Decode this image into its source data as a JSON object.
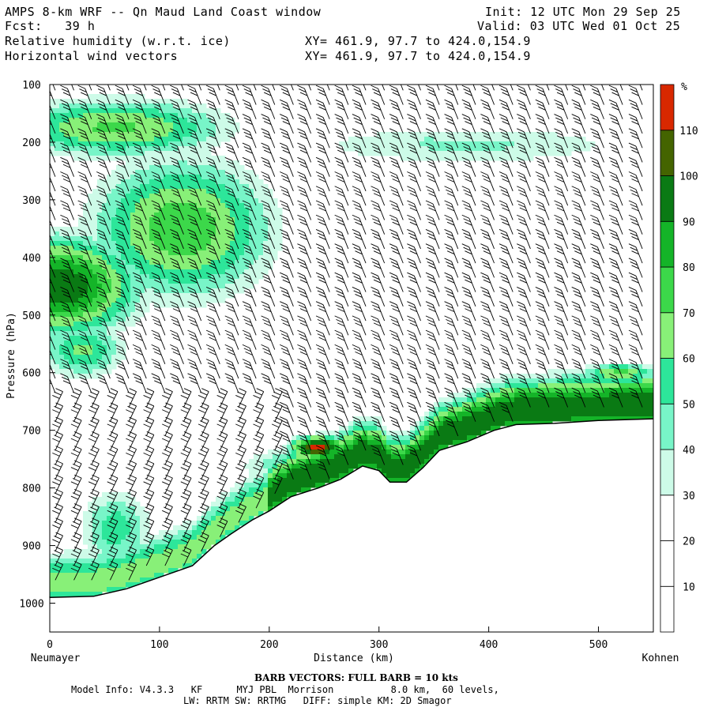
{
  "header": {
    "line1_left": "AMPS 8-km WRF -- Qn Maud Land Coast window",
    "line1_right": "Init: 12 UTC Mon 29 Sep 25",
    "line2_left": "Fcst:   39 h",
    "line2_right": "Valid: 03 UTC Wed 01 Oct 25",
    "line3_left": "Relative humidity (w.r.t. ice)",
    "line3_right": "XY= 461.9, 97.7 to 424.0,154.9",
    "line4_left": "Horizontal wind vectors",
    "line4_right": "XY= 461.9, 97.7 to 424.0,154.9"
  },
  "chart_data": {
    "type": "contour",
    "title": "Relative humidity (w.r.t. ice)",
    "xlabel": "Distance (km)",
    "ylabel": "Pressure (hPa)",
    "xlim": [
      0,
      550
    ],
    "ylim": [
      1050,
      100
    ],
    "x_ticks": [
      0,
      100,
      200,
      300,
      400,
      500
    ],
    "y_ticks": [
      100,
      200,
      300,
      400,
      500,
      600,
      700,
      800,
      900,
      1000
    ],
    "x_start_label": "Neumayer",
    "x_end_label": "Kohnen",
    "colorbar": {
      "unit": "%",
      "levels": [
        10,
        20,
        30,
        40,
        50,
        60,
        70,
        80,
        90,
        100,
        110
      ],
      "colors": [
        "#ffffff",
        "#ffffff",
        "#ffffff",
        "#cdfbe8",
        "#78f5c8",
        "#2de69a",
        "#88f078",
        "#3cd84a",
        "#14b428",
        "#0a7a14",
        "#446400",
        "#d82800"
      ]
    },
    "terrain": [
      {
        "x": 0,
        "p": 990
      },
      {
        "x": 40,
        "p": 988
      },
      {
        "x": 70,
        "p": 975
      },
      {
        "x": 100,
        "p": 955
      },
      {
        "x": 130,
        "p": 935
      },
      {
        "x": 150,
        "p": 900
      },
      {
        "x": 165,
        "p": 880
      },
      {
        "x": 185,
        "p": 855
      },
      {
        "x": 200,
        "p": 840
      },
      {
        "x": 220,
        "p": 815
      },
      {
        "x": 245,
        "p": 800
      },
      {
        "x": 265,
        "p": 785
      },
      {
        "x": 285,
        "p": 762
      },
      {
        "x": 300,
        "p": 770
      },
      {
        "x": 310,
        "p": 790
      },
      {
        "x": 325,
        "p": 790
      },
      {
        "x": 340,
        "p": 765
      },
      {
        "x": 355,
        "p": 735
      },
      {
        "x": 380,
        "p": 720
      },
      {
        "x": 405,
        "p": 700
      },
      {
        "x": 425,
        "p": 690
      },
      {
        "x": 460,
        "p": 688
      },
      {
        "x": 500,
        "p": 683
      },
      {
        "x": 550,
        "p": 680
      }
    ],
    "barb_columns_km": [
      5,
      22,
      38,
      55,
      72,
      88,
      105,
      122,
      138,
      155,
      172,
      188,
      205,
      222,
      238,
      255,
      272,
      288,
      305,
      322,
      338,
      355,
      372,
      388,
      405,
      422,
      438,
      455,
      472,
      488,
      505,
      522,
      540
    ]
  },
  "footer": {
    "barb_note": "BARB VECTORS: FULL BARB = 10 kts",
    "model_info_1": "Model Info: V4.3.3   KF      MYJ PBL  Morrison          8.0 km,  60 levels,",
    "model_info_2": "LW: RRTM SW: RRTMG   DIFF: simple KM: 2D Smagor"
  }
}
